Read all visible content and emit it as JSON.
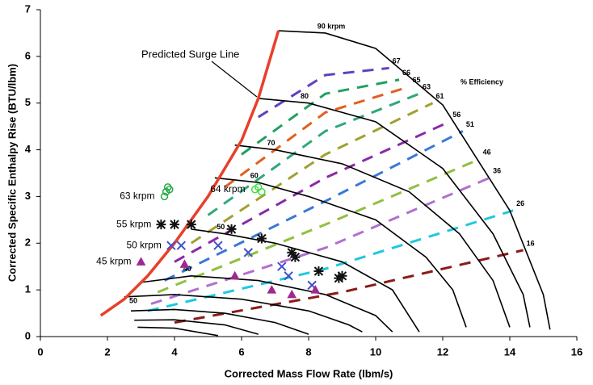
{
  "chart_data": {
    "type": "line",
    "x_label": "Corrected Mass Flow Rate (lbm/s)",
    "y_label": "Corrected Specific Enthalpy Rise (BTU/lbm)",
    "xlim": [
      0,
      16
    ],
    "xticks": [
      0,
      2,
      4,
      6,
      8,
      10,
      12,
      14,
      16
    ],
    "ylim": [
      0,
      7
    ],
    "yticks": [
      0,
      1,
      2,
      3,
      4,
      5,
      6,
      7
    ],
    "annotations": [
      "Predicted Surge Line",
      "50",
      "% Efficiency"
    ],
    "surge_line": {
      "color": "#e8402a",
      "x": [
        1.8,
        2.5,
        3.2,
        4.0,
        5.0,
        6.0,
        6.5,
        7.1
      ],
      "values": [
        0.45,
        0.8,
        1.3,
        2.0,
        3.0,
        4.2,
        5.1,
        6.55
      ]
    },
    "speed_lines": [
      {
        "label": "90 krpm",
        "x": [
          7.1,
          8.5,
          10,
          12,
          14,
          15,
          15.2
        ],
        "values": [
          6.55,
          6.5,
          6.17,
          4.96,
          2.7,
          0.9,
          0.15
        ]
      },
      {
        "label": "80",
        "x": [
          6.5,
          8,
          10,
          12,
          13.5,
          14.4,
          14.6
        ],
        "values": [
          5.1,
          5.0,
          4.6,
          3.6,
          2.2,
          0.9,
          0.2
        ]
      },
      {
        "label": "70",
        "x": [
          5.8,
          7,
          9,
          11,
          12.5,
          13.5,
          14
        ],
        "values": [
          4.1,
          4.0,
          3.7,
          3.1,
          2.2,
          1.2,
          0.2
        ]
      },
      {
        "label": "60",
        "x": [
          5.2,
          6.5,
          8,
          10,
          11.5,
          12.3,
          12.7
        ],
        "values": [
          3.4,
          3.3,
          3.0,
          2.5,
          1.7,
          1.0,
          0.2
        ]
      },
      {
        "label": "50",
        "x": [
          4.5,
          5.5,
          7,
          9,
          10.5,
          11.3
        ],
        "values": [
          2.3,
          2.2,
          2.0,
          1.6,
          1.0,
          0.1
        ]
      },
      {
        "label": "40",
        "x": [
          3.0,
          4.5,
          6.5,
          8.5,
          10,
          10.5
        ],
        "values": [
          1.16,
          1.3,
          1.2,
          0.9,
          0.45,
          0.1
        ]
      },
      {
        "label": null,
        "x": [
          2.5,
          4,
          6,
          8,
          9.2,
          9.6
        ],
        "values": [
          0.85,
          0.9,
          0.8,
          0.55,
          0.25,
          0.1
        ]
      },
      {
        "label": null,
        "x": [
          2.7,
          4,
          5.5,
          7,
          8.0
        ],
        "values": [
          0.55,
          0.58,
          0.5,
          0.3,
          0.05
        ]
      },
      {
        "label": null,
        "x": [
          2.8,
          4,
          5.5,
          6.5
        ],
        "values": [
          0.35,
          0.36,
          0.25,
          0.05
        ]
      },
      {
        "label": null,
        "x": [
          2.9,
          4,
          5.3
        ],
        "values": [
          0.2,
          0.18,
          0.02
        ]
      }
    ],
    "efficiency_lines": [
      {
        "label": "16",
        "color": "#8b1a1a",
        "x": [
          4,
          9,
          14.4
        ],
        "values": [
          0.3,
          0.95,
          1.85
        ]
      },
      {
        "label": "26",
        "color": "#1ec8e0",
        "x": [
          3.2,
          8.5,
          14.1
        ],
        "values": [
          0.55,
          1.45,
          2.7
        ]
      },
      {
        "label": "36",
        "color": "#b070d0",
        "x": [
          3.3,
          8.5,
          13.4
        ],
        "values": [
          0.7,
          1.9,
          3.4
        ]
      },
      {
        "label": "46",
        "color": "#90c040",
        "x": [
          3.5,
          8.5,
          13.1
        ],
        "values": [
          0.95,
          2.4,
          3.8
        ]
      },
      {
        "label": "51",
        "color": "#3a78d8",
        "x": [
          3.7,
          8.5,
          12.6
        ],
        "values": [
          1.2,
          2.9,
          4.4
        ]
      },
      {
        "label": "56",
        "color": "#8a2aa8",
        "x": [
          4,
          8.5,
          12.2
        ],
        "values": [
          1.6,
          3.4,
          4.6
        ]
      },
      {
        "label": "61",
        "color": "#a0a030",
        "x": [
          4.5,
          8.5,
          11.7
        ],
        "values": [
          2.0,
          3.9,
          5.0
        ]
      },
      {
        "label": "63",
        "color": "#30a878",
        "x": [
          5,
          8.5,
          11.3
        ],
        "values": [
          2.6,
          4.4,
          5.2
        ]
      },
      {
        "label": "65",
        "color": "#e06020",
        "x": [
          5.5,
          8.5,
          11.0
        ],
        "values": [
          3.2,
          4.8,
          5.35
        ]
      },
      {
        "label": "66",
        "color": "#20a060",
        "x": [
          6,
          8.5,
          10.7
        ],
        "values": [
          3.9,
          5.2,
          5.5
        ]
      },
      {
        "label": "67",
        "color": "#6040c0",
        "x": [
          6.5,
          8.5,
          10.4
        ],
        "values": [
          4.7,
          5.6,
          5.75
        ]
      }
    ],
    "test_points": [
      {
        "label": "63 krpm",
        "color": "#22aa44",
        "marker": "circle",
        "x": [
          3.7,
          3.75,
          3.8,
          3.85
        ],
        "values": [
          3.0,
          3.1,
          3.2,
          3.15
        ]
      },
      {
        "label": "64 krpm",
        "color": "#44dd44",
        "marker": "circle",
        "x": [
          6.4,
          6.5,
          6.6
        ],
        "values": [
          3.15,
          3.2,
          3.1
        ]
      },
      {
        "label": "55 krpm",
        "color": "#111111",
        "marker": "star",
        "x": [
          3.6,
          4.0,
          4.5,
          5.7,
          6.6,
          7.5,
          7.6,
          8.3,
          8.9,
          9.0
        ],
        "values": [
          2.4,
          2.4,
          2.4,
          2.3,
          2.1,
          1.8,
          1.7,
          1.4,
          1.25,
          1.3
        ]
      },
      {
        "label": "50 krpm",
        "color": "#4050c8",
        "marker": "cross",
        "x": [
          3.9,
          4.2,
          5.3,
          6.2,
          7.2,
          7.4,
          8.1
        ],
        "values": [
          1.95,
          1.95,
          1.95,
          1.8,
          1.5,
          1.3,
          1.1
        ]
      },
      {
        "label": "45 krpm",
        "color": "#a02890",
        "marker": "triangle",
        "x": [
          3.0,
          4.3,
          5.8,
          6.9,
          7.5,
          8.2
        ],
        "values": [
          1.6,
          1.55,
          1.3,
          1.0,
          0.9,
          1.0
        ]
      }
    ]
  }
}
